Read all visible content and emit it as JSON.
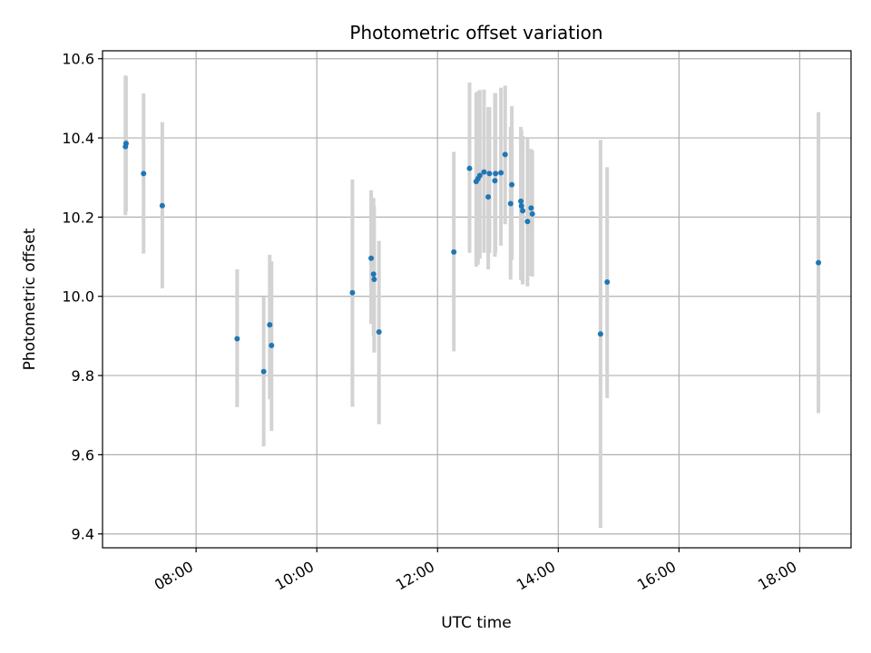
{
  "chart_data": {
    "type": "scatter",
    "title": "Photometric offset variation",
    "xlabel": "UTC time",
    "ylabel": "Photometric offset",
    "x_unit": "hours UTC",
    "xlim": [
      6.45,
      18.85
    ],
    "ylim": [
      9.365,
      10.62
    ],
    "x_ticks": [
      {
        "value": 8,
        "label": "08:00"
      },
      {
        "value": 10,
        "label": "10:00"
      },
      {
        "value": 12,
        "label": "12:00"
      },
      {
        "value": 14,
        "label": "14:00"
      },
      {
        "value": 16,
        "label": "16:00"
      },
      {
        "value": 18,
        "label": "18:00"
      }
    ],
    "y_ticks": [
      {
        "value": 9.4,
        "label": "9.4"
      },
      {
        "value": 9.6,
        "label": "9.6"
      },
      {
        "value": 9.8,
        "label": "9.8"
      },
      {
        "value": 10.0,
        "label": "10.0"
      },
      {
        "value": 10.2,
        "label": "10.2"
      },
      {
        "value": 10.4,
        "label": "10.4"
      },
      {
        "value": 10.6,
        "label": "10.6"
      }
    ],
    "grid": true,
    "point_color": "#1f77b4",
    "errorbar_color": "#d3d3d3",
    "points": [
      {
        "x": 6.83,
        "y": 10.378,
        "ylo": 10.205,
        "yhi": 10.558
      },
      {
        "x": 6.84,
        "y": 10.386,
        "ylo": 10.215,
        "yhi": 10.555
      },
      {
        "x": 7.13,
        "y": 10.31,
        "ylo": 10.108,
        "yhi": 10.512
      },
      {
        "x": 7.44,
        "y": 10.229,
        "ylo": 10.02,
        "yhi": 10.44
      },
      {
        "x": 8.68,
        "y": 9.893,
        "ylo": 9.72,
        "yhi": 10.068
      },
      {
        "x": 9.12,
        "y": 9.81,
        "ylo": 9.621,
        "yhi": 9.998
      },
      {
        "x": 9.22,
        "y": 9.928,
        "ylo": 9.74,
        "yhi": 10.105
      },
      {
        "x": 9.25,
        "y": 9.876,
        "ylo": 9.66,
        "yhi": 10.088
      },
      {
        "x": 10.59,
        "y": 10.009,
        "ylo": 9.721,
        "yhi": 10.295
      },
      {
        "x": 10.9,
        "y": 10.096,
        "ylo": 9.93,
        "yhi": 10.268
      },
      {
        "x": 10.94,
        "y": 10.056,
        "ylo": 9.9,
        "yhi": 10.248
      },
      {
        "x": 10.95,
        "y": 10.043,
        "ylo": 9.858,
        "yhi": 10.228
      },
      {
        "x": 11.03,
        "y": 9.91,
        "ylo": 9.677,
        "yhi": 10.14
      },
      {
        "x": 12.27,
        "y": 10.112,
        "ylo": 9.861,
        "yhi": 10.365
      },
      {
        "x": 12.53,
        "y": 10.323,
        "ylo": 10.11,
        "yhi": 10.54
      },
      {
        "x": 12.64,
        "y": 10.29,
        "ylo": 10.075,
        "yhi": 10.515
      },
      {
        "x": 12.67,
        "y": 10.297,
        "ylo": 10.08,
        "yhi": 10.518
      },
      {
        "x": 12.7,
        "y": 10.305,
        "ylo": 10.095,
        "yhi": 10.521
      },
      {
        "x": 12.77,
        "y": 10.314,
        "ylo": 10.11,
        "yhi": 10.522
      },
      {
        "x": 12.84,
        "y": 10.251,
        "ylo": 10.068,
        "yhi": 10.478
      },
      {
        "x": 12.86,
        "y": 10.31,
        "ylo": 10.11,
        "yhi": 10.478
      },
      {
        "x": 12.95,
        "y": 10.292,
        "ylo": 10.1,
        "yhi": 10.513
      },
      {
        "x": 12.96,
        "y": 10.31,
        "ylo": 10.11,
        "yhi": 10.513
      },
      {
        "x": 13.05,
        "y": 10.312,
        "ylo": 10.128,
        "yhi": 10.527
      },
      {
        "x": 13.12,
        "y": 10.358,
        "ylo": 10.182,
        "yhi": 10.532
      },
      {
        "x": 13.21,
        "y": 10.234,
        "ylo": 10.042,
        "yhi": 10.428
      },
      {
        "x": 13.23,
        "y": 10.282,
        "ylo": 10.092,
        "yhi": 10.48
      },
      {
        "x": 13.38,
        "y": 10.24,
        "ylo": 10.042,
        "yhi": 10.428
      },
      {
        "x": 13.39,
        "y": 10.228,
        "ylo": 10.04,
        "yhi": 10.42
      },
      {
        "x": 13.41,
        "y": 10.216,
        "ylo": 10.03,
        "yhi": 10.405
      },
      {
        "x": 13.49,
        "y": 10.189,
        "ylo": 10.025,
        "yhi": 10.398
      },
      {
        "x": 13.55,
        "y": 10.223,
        "ylo": 10.052,
        "yhi": 10.372
      },
      {
        "x": 13.57,
        "y": 10.208,
        "ylo": 10.05,
        "yhi": 10.368
      },
      {
        "x": 14.7,
        "y": 9.905,
        "ylo": 9.415,
        "yhi": 10.395
      },
      {
        "x": 14.81,
        "y": 10.036,
        "ylo": 9.743,
        "yhi": 10.326
      },
      {
        "x": 18.31,
        "y": 10.085,
        "ylo": 9.705,
        "yhi": 10.465
      }
    ]
  }
}
